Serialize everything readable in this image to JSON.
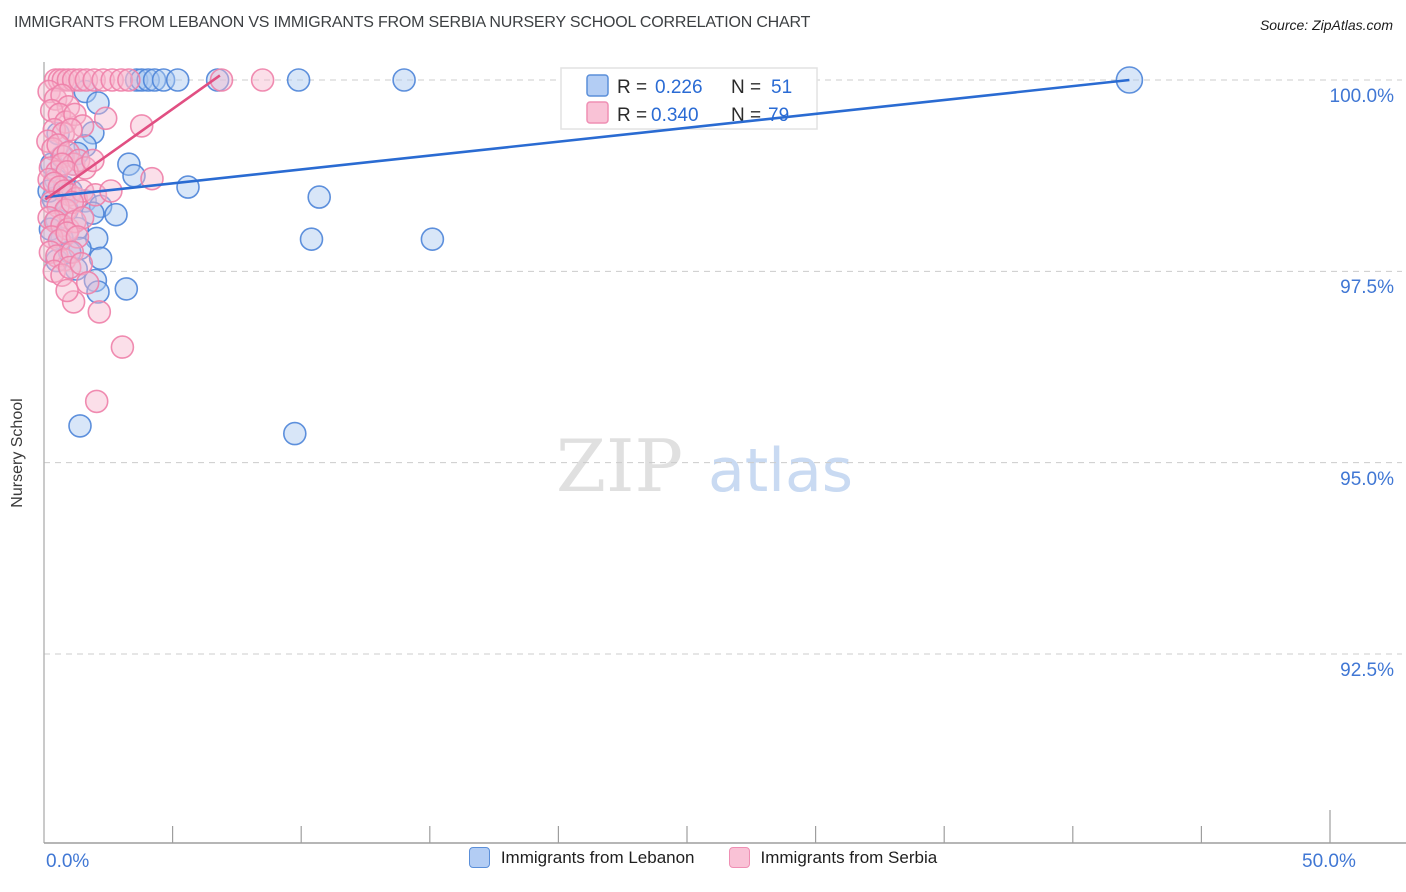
{
  "header": {
    "title": "IMMIGRANTS FROM LEBANON VS IMMIGRANTS FROM SERBIA NURSERY SCHOOL CORRELATION CHART",
    "source": "Source: ZipAtlas.com"
  },
  "y_axis": {
    "label": "Nursery School"
  },
  "x_axis": {
    "min_label": "0.0%",
    "max_label": "50.0%"
  },
  "watermark": {
    "zip": "ZIP",
    "atlas": "atlas"
  },
  "stats_legend": {
    "rows": [
      {
        "r_label": "R =",
        "r_value": "0.226",
        "n_label": "N =",
        "n_value": "51"
      },
      {
        "r_label": "R =",
        "r_value": "0.340",
        "n_label": "N =",
        "n_value": "79"
      }
    ]
  },
  "bottom_legend": {
    "items": [
      {
        "label": "Immigrants from Lebanon"
      },
      {
        "label": "Immigrants from Serbia"
      }
    ]
  },
  "chart_data": {
    "type": "scatter",
    "title": "IMMIGRANTS FROM LEBANON VS IMMIGRANTS FROM SERBIA NURSERY SCHOOL CORRELATION CHART",
    "xlabel": "",
    "ylabel": "Nursery School",
    "xlim": [
      0,
      50
    ],
    "ylim": [
      90,
      100.25
    ],
    "x_ticks_minor_pct": [
      5,
      10,
      15,
      20,
      25,
      30,
      35,
      40,
      45
    ],
    "x_ticks_major_pct": [
      50
    ],
    "y_ticks": [
      {
        "label": "100.0%",
        "value": 100.0
      },
      {
        "label": "97.5%",
        "value": 97.5
      },
      {
        "label": "95.0%",
        "value": 95.0
      },
      {
        "label": "92.5%",
        "value": 92.5
      }
    ],
    "grid": "dashed-horizontal",
    "legend_position": "bottom-center",
    "series": [
      {
        "name": "Immigrants from Lebanon",
        "R": 0.226,
        "N": 51,
        "stroke": "#4d84d8",
        "fill": "#a9c7f0",
        "points": [
          [
            3.6,
            100
          ],
          [
            3.8,
            100
          ],
          [
            4.05,
            100
          ],
          [
            4.3,
            100
          ],
          [
            4.65,
            100
          ],
          [
            5.2,
            100
          ],
          [
            6.75,
            100
          ],
          [
            9.9,
            100
          ],
          [
            14.0,
            100
          ],
          [
            42.2,
            100,
            13
          ],
          [
            1.6,
            99.85
          ],
          [
            2.1,
            99.7
          ],
          [
            1.9,
            99.31
          ],
          [
            1.6,
            99.14
          ],
          [
            1.3,
            99.04
          ],
          [
            3.3,
            98.9
          ],
          [
            3.5,
            98.75
          ],
          [
            5.6,
            98.6
          ],
          [
            10.7,
            98.47
          ],
          [
            1.05,
            98.55
          ],
          [
            1.6,
            98.42
          ],
          [
            2.2,
            98.35
          ],
          [
            1.9,
            98.26
          ],
          [
            2.8,
            98.24
          ],
          [
            0.5,
            98.17
          ],
          [
            1.3,
            98.06
          ],
          [
            2.05,
            97.93
          ],
          [
            0.7,
            97.93
          ],
          [
            1.4,
            97.8
          ],
          [
            2.2,
            97.67
          ],
          [
            0.5,
            97.64
          ],
          [
            1.25,
            97.53
          ],
          [
            2.0,
            97.38
          ],
          [
            3.2,
            97.27
          ],
          [
            2.1,
            97.23
          ],
          [
            10.4,
            97.92
          ],
          [
            15.1,
            97.92
          ],
          [
            0.3,
            98.9
          ],
          [
            0.45,
            98.7
          ],
          [
            0.8,
            98.6
          ],
          [
            0.35,
            98.45
          ],
          [
            0.9,
            98.3
          ],
          [
            0.25,
            98.05
          ],
          [
            0.6,
            97.9
          ],
          [
            1.0,
            97.75
          ],
          [
            1.4,
            95.48
          ],
          [
            9.75,
            95.38
          ],
          [
            0.55,
            99.3
          ],
          [
            1.15,
            98.9
          ],
          [
            0.7,
            99.0
          ],
          [
            0.2,
            98.55
          ]
        ]
      },
      {
        "name": "Immigrants from Serbia",
        "R": 0.34,
        "N": 79,
        "stroke": "#ee7fa8",
        "fill": "#f7b8cf",
        "points": [
          [
            0.45,
            100
          ],
          [
            0.6,
            100
          ],
          [
            0.75,
            100
          ],
          [
            0.95,
            100
          ],
          [
            1.15,
            100
          ],
          [
            1.4,
            100
          ],
          [
            1.65,
            100
          ],
          [
            1.95,
            100
          ],
          [
            2.3,
            100
          ],
          [
            2.65,
            100
          ],
          [
            3.0,
            100
          ],
          [
            3.3,
            100
          ],
          [
            6.9,
            100
          ],
          [
            8.5,
            100
          ],
          [
            0.2,
            99.85
          ],
          [
            0.45,
            99.75
          ],
          [
            0.7,
            99.8
          ],
          [
            0.95,
            99.65
          ],
          [
            0.3,
            99.6
          ],
          [
            0.6,
            99.55
          ],
          [
            0.85,
            99.45
          ],
          [
            1.2,
            99.55
          ],
          [
            1.5,
            99.4
          ],
          [
            0.4,
            99.35
          ],
          [
            0.75,
            99.3
          ],
          [
            1.05,
            99.35
          ],
          [
            3.8,
            99.4
          ],
          [
            2.4,
            99.5
          ],
          [
            0.15,
            99.2
          ],
          [
            0.35,
            99.1
          ],
          [
            0.55,
            99.15
          ],
          [
            0.75,
            99.0
          ],
          [
            0.95,
            99.05
          ],
          [
            1.15,
            98.9
          ],
          [
            1.35,
            98.95
          ],
          [
            0.25,
            98.85
          ],
          [
            0.5,
            98.8
          ],
          [
            0.7,
            98.9
          ],
          [
            0.9,
            98.8
          ],
          [
            1.6,
            98.85
          ],
          [
            1.9,
            98.95
          ],
          [
            4.2,
            98.71
          ],
          [
            0.2,
            98.7
          ],
          [
            0.4,
            98.65
          ],
          [
            0.6,
            98.6
          ],
          [
            0.8,
            98.55
          ],
          [
            1.0,
            98.5
          ],
          [
            1.25,
            98.45
          ],
          [
            1.5,
            98.55
          ],
          [
            0.3,
            98.4
          ],
          [
            0.55,
            98.35
          ],
          [
            0.85,
            98.3
          ],
          [
            1.1,
            98.4
          ],
          [
            2.0,
            98.5
          ],
          [
            2.6,
            98.55
          ],
          [
            0.2,
            98.2
          ],
          [
            0.45,
            98.15
          ],
          [
            0.7,
            98.1
          ],
          [
            0.95,
            98.05
          ],
          [
            1.2,
            98.15
          ],
          [
            1.5,
            98.2
          ],
          [
            0.3,
            97.95
          ],
          [
            0.6,
            97.9
          ],
          [
            0.9,
            98.0
          ],
          [
            1.3,
            97.95
          ],
          [
            0.25,
            97.75
          ],
          [
            0.5,
            97.7
          ],
          [
            0.8,
            97.65
          ],
          [
            1.1,
            97.75
          ],
          [
            0.4,
            97.5
          ],
          [
            0.7,
            97.45
          ],
          [
            1.0,
            97.55
          ],
          [
            1.45,
            97.6
          ],
          [
            1.15,
            97.1
          ],
          [
            2.15,
            96.97
          ],
          [
            3.05,
            96.51
          ],
          [
            2.05,
            95.8
          ],
          [
            0.9,
            97.25
          ],
          [
            1.7,
            97.35
          ]
        ]
      }
    ],
    "trend_lines": [
      {
        "series": "Immigrants from Lebanon",
        "color": "#2a6bd2",
        "x0": 0.05,
        "y0": 98.47,
        "x1": 42.2,
        "y1": 100.0
      },
      {
        "series": "Immigrants from Serbia",
        "color": "#e14f82",
        "x0": 0.05,
        "y0": 98.44,
        "x1": 6.84,
        "y1": 100.06
      }
    ]
  }
}
